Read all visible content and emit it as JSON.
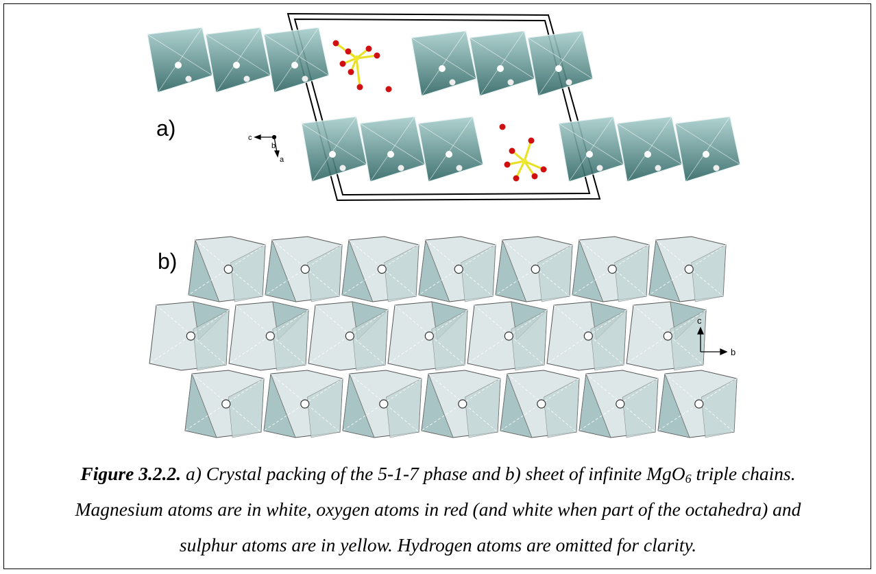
{
  "figure": {
    "panel_a": {
      "label": "a)",
      "axes": [
        "c",
        "b",
        "a"
      ]
    },
    "panel_b": {
      "label": "b)",
      "axes": [
        "c",
        "b"
      ]
    },
    "caption": {
      "number": "Figure 3.2.2.",
      "line_1a": " a) Crystal packing of the 5-1-7 phase and b) sheet of infinite MgO",
      "subscript": "6",
      "line_1b": " triple chains.",
      "line_2": "Magnesium atoms are in white, oxygen atoms in red (and white when part of the octahedra) and",
      "line_3": "sulphur atoms are in yellow. Hydrogen atoms are omitted for clarity."
    }
  }
}
